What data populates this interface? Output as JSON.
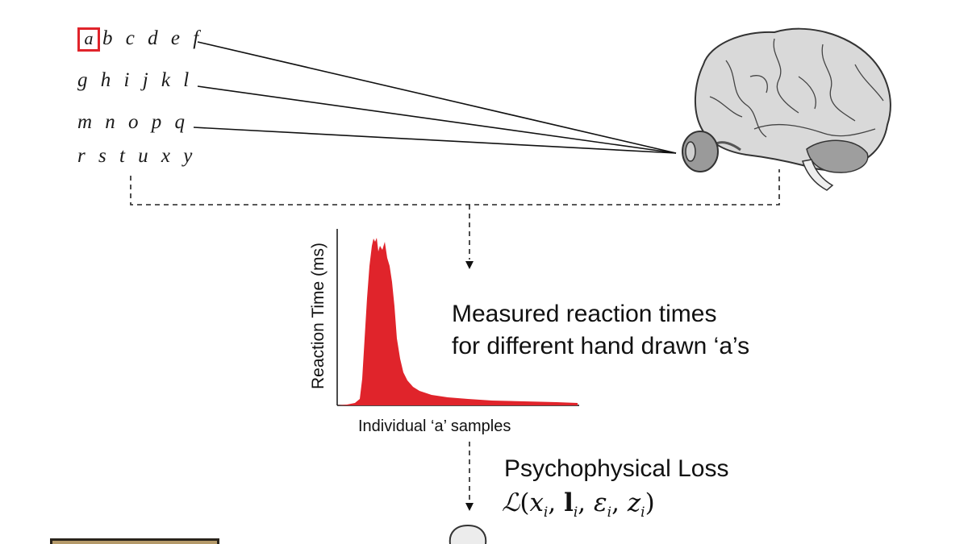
{
  "alphabet": {
    "rows": [
      {
        "highlight": "a",
        "rest": "b c d e f"
      },
      {
        "highlight": "",
        "rest": "g h i j k l"
      },
      {
        "highlight": "",
        "rest": "m n o p q"
      },
      {
        "highlight": "",
        "rest": "r s t u x y"
      }
    ],
    "highlight_color": "#e0242b"
  },
  "histogram": {
    "ylabel": "Reaction Time (ms)",
    "xlabel": "Individual ‘a’ samples",
    "bar_color": "#e0242b"
  },
  "caption": {
    "line1": "Measured reaction times",
    "line2": "for different hand drawn ‘a’s"
  },
  "loss": {
    "title": "Psychophysical Loss",
    "formula_parts": [
      "x",
      "i",
      "l",
      "i",
      "ε",
      "i",
      "z",
      "i"
    ]
  },
  "icons": [
    "brain-icon",
    "eye-icon",
    "down-arrow-icon",
    "person-head-icon",
    "framed-image-icon"
  ]
}
